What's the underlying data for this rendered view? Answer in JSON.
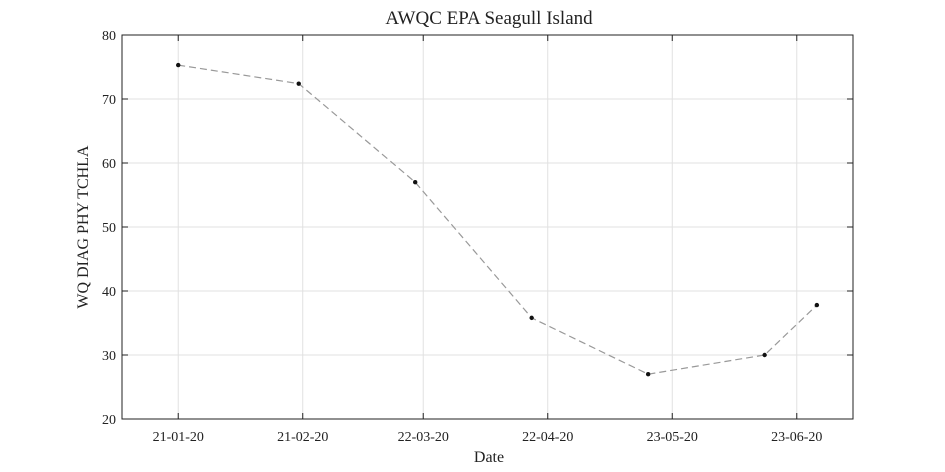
{
  "chart_data": {
    "type": "line",
    "title": "AWQC EPA Seagull Island",
    "xlabel": "Date",
    "ylabel": "WQ DIAG PHY TCHLA",
    "x_tick_labels": [
      "21-01-20",
      "21-02-20",
      "22-03-20",
      "22-04-20",
      "23-05-20",
      "23-06-20"
    ],
    "x_tick_dates": [
      "2020-01-21",
      "2020-02-21",
      "2020-03-22",
      "2020-04-22",
      "2020-05-23",
      "2020-06-23"
    ],
    "xlim": [
      "2020-01-07",
      "2020-07-07"
    ],
    "ylim": [
      20,
      80
    ],
    "y_ticks": [
      20,
      30,
      40,
      50,
      60,
      70,
      80
    ],
    "grid": true,
    "series": [
      {
        "color": "#999999",
        "line_style": "dashed",
        "marker_color": "#111111",
        "points": [
          {
            "x": "2020-01-21",
            "y": 75.3
          },
          {
            "x": "2020-02-20",
            "y": 72.4
          },
          {
            "x": "2020-03-20",
            "y": 57.0
          },
          {
            "x": "2020-04-18",
            "y": 35.8
          },
          {
            "x": "2020-05-17",
            "y": 27.0
          },
          {
            "x": "2020-06-15",
            "y": 30.0
          },
          {
            "x": "2020-06-28",
            "y": 37.8
          }
        ]
      }
    ]
  }
}
